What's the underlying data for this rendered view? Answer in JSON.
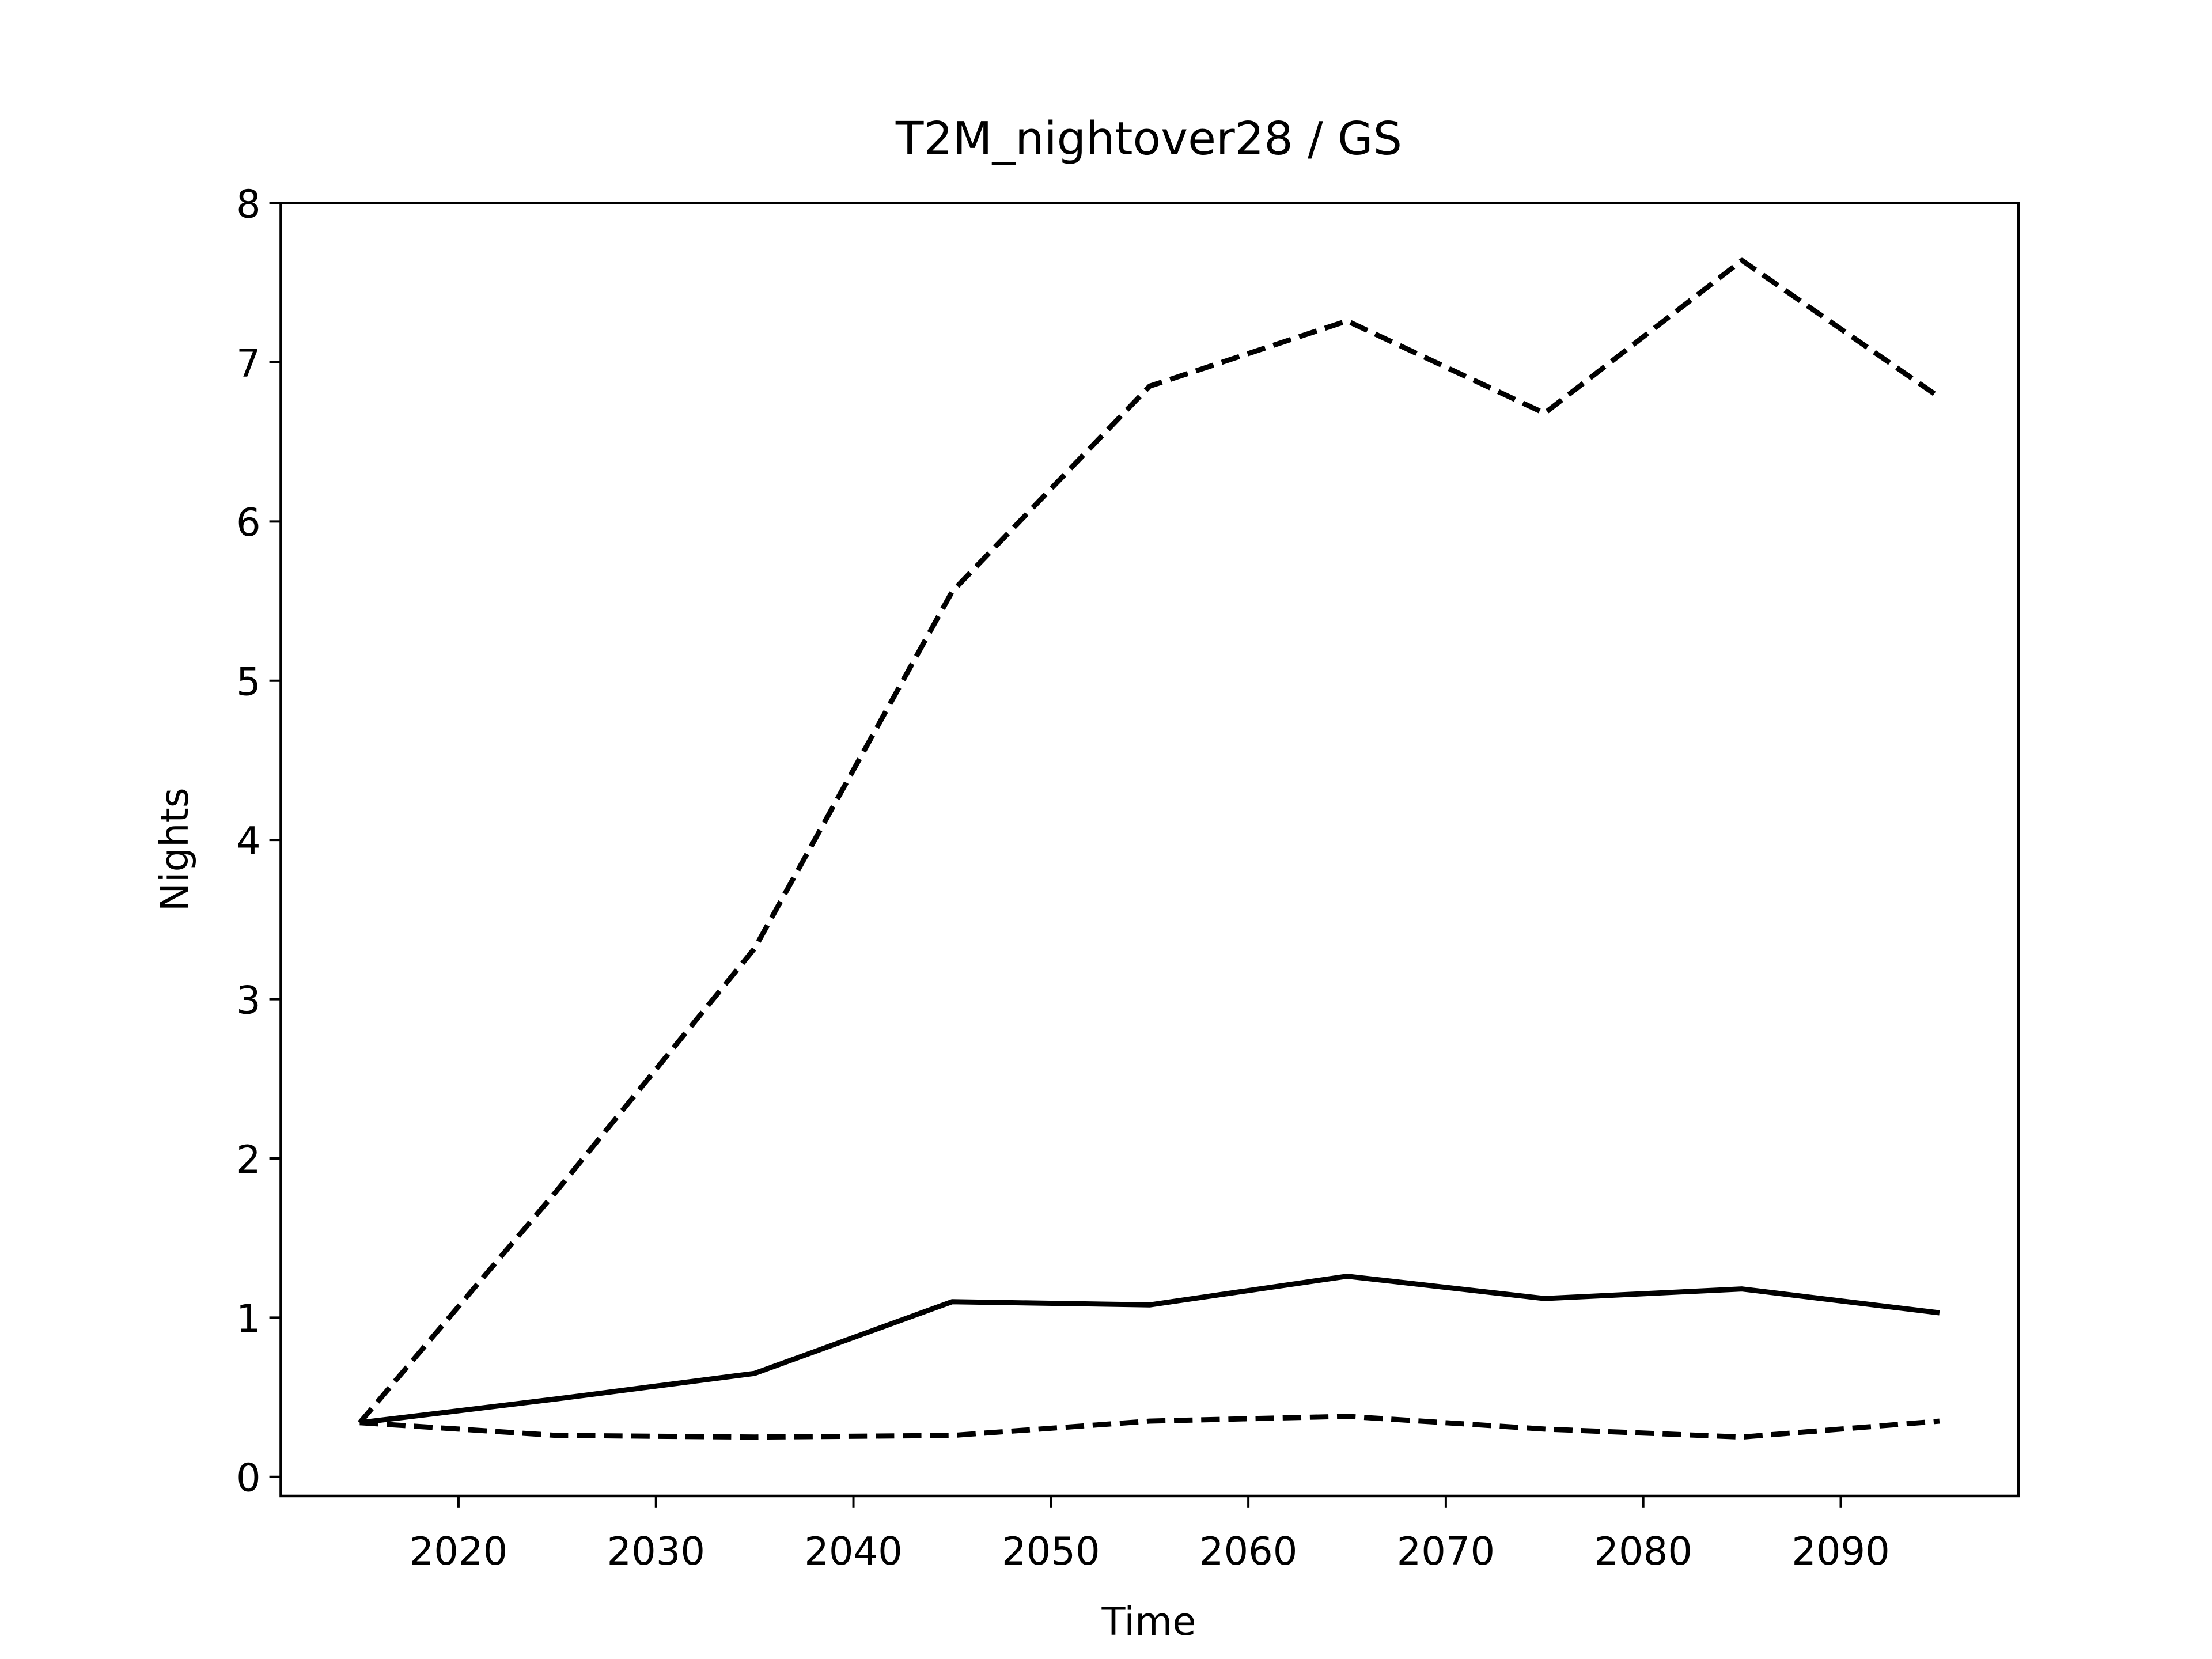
{
  "chart_data": {
    "type": "line",
    "title": "T2M_nightover28 / GS",
    "xlabel": "Time",
    "ylabel": "Nights",
    "x": [
      2015,
      2025,
      2035,
      2045,
      2055,
      2065,
      2075,
      2085,
      2095
    ],
    "series": [
      {
        "color": "#000000",
        "linestyle": "solid",
        "values": [
          0.34,
          0.49,
          0.65,
          1.1,
          1.08,
          1.26,
          1.12,
          1.18,
          1.03
        ]
      },
      {
        "color": "#000000",
        "linestyle": "dashed",
        "values": [
          0.34,
          1.8,
          3.32,
          5.56,
          6.85,
          7.26,
          6.68,
          7.64,
          6.78
        ]
      },
      {
        "color": "#000000",
        "linestyle": "dashed",
        "values": [
          0.34,
          0.26,
          0.25,
          0.26,
          0.35,
          0.38,
          0.3,
          0.25,
          0.35
        ]
      }
    ],
    "xlim": [
      2011,
      2099
    ],
    "xticks": [
      2020,
      2030,
      2040,
      2050,
      2060,
      2070,
      2080,
      2090
    ],
    "ylim": [
      -0.12,
      8
    ],
    "yticks": [
      0,
      1,
      2,
      3,
      4,
      5,
      6,
      7,
      8
    ],
    "grid": false
  }
}
